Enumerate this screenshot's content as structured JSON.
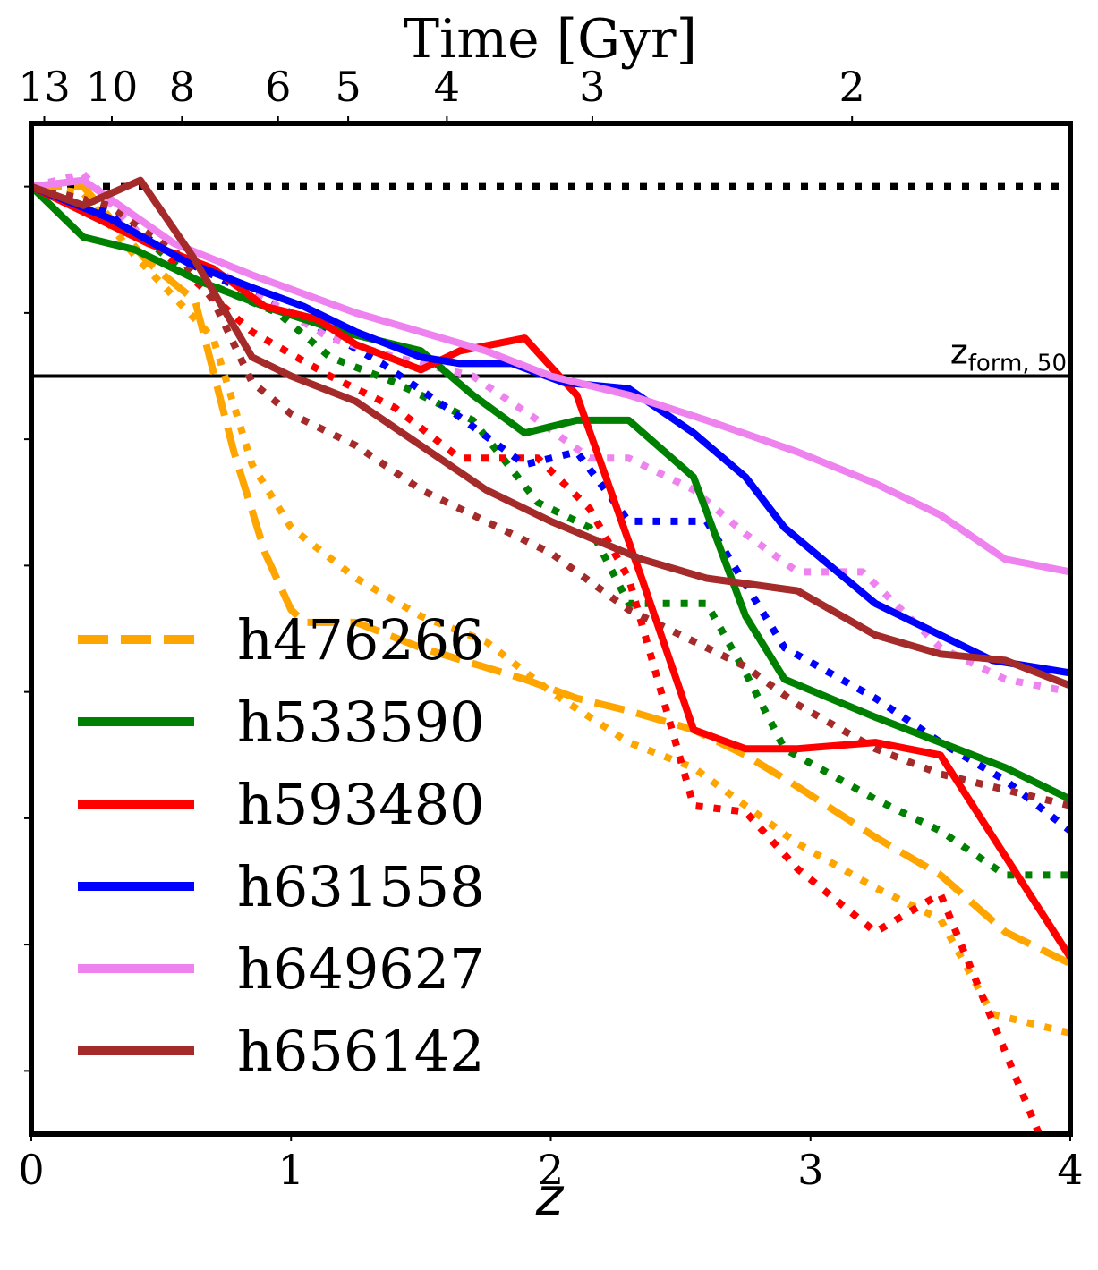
{
  "chart_data": {
    "type": "line",
    "top_axis": {
      "label": "Time [Gyr]",
      "ticks": [
        {
          "label": "13",
          "z": 0.05
        },
        {
          "label": "10",
          "z": 0.31
        },
        {
          "label": "8",
          "z": 0.58
        },
        {
          "label": "6",
          "z": 0.95
        },
        {
          "label": "5",
          "z": 1.22
        },
        {
          "label": "4",
          "z": 1.6
        },
        {
          "label": "3",
          "z": 2.16
        },
        {
          "label": "2",
          "z": 3.16
        }
      ]
    },
    "xlabel": "z",
    "xlim": [
      0,
      4
    ],
    "x_ticks": [
      "0",
      "1",
      "2",
      "3",
      "4"
    ],
    "ylim": [
      0,
      8
    ],
    "y_minor_ticks": [
      0.5,
      1.5,
      2.5,
      3.5,
      4.5,
      5.5,
      6.5,
      7.5
    ],
    "reference_lines": {
      "dotted_top_y": 7.5,
      "zform_y": 6.0,
      "zform_label_main": "z",
      "zform_label_sub": "form, 50"
    },
    "legend": {
      "placement": "lower-left"
    },
    "series": [
      {
        "name": "h476266",
        "color": "#ffa500",
        "solid_style": "dashed",
        "solid": [
          [
            0,
            7.5
          ],
          [
            0.2,
            7.5
          ],
          [
            0.45,
            6.9
          ],
          [
            0.63,
            6.6
          ],
          [
            0.78,
            5.4
          ],
          [
            0.9,
            4.6
          ],
          [
            1.0,
            4.15
          ],
          [
            1.05,
            4.05
          ],
          [
            1.25,
            4.05
          ],
          [
            1.5,
            3.85
          ],
          [
            1.9,
            3.6
          ],
          [
            2.1,
            3.45
          ],
          [
            2.3,
            3.35
          ],
          [
            2.55,
            3.2
          ],
          [
            2.75,
            3.0
          ],
          [
            2.95,
            2.75
          ],
          [
            3.25,
            2.35
          ],
          [
            3.5,
            2.05
          ],
          [
            3.75,
            1.6
          ],
          [
            4.0,
            1.35
          ]
        ],
        "dotted": [
          [
            0,
            7.5
          ],
          [
            0.2,
            7.45
          ],
          [
            0.4,
            6.95
          ],
          [
            0.7,
            6.3
          ],
          [
            0.85,
            5.3
          ],
          [
            1.0,
            4.8
          ],
          [
            1.25,
            4.4
          ],
          [
            1.5,
            4.1
          ],
          [
            1.75,
            3.9
          ],
          [
            2.0,
            3.5
          ],
          [
            2.3,
            3.1
          ],
          [
            2.55,
            2.9
          ],
          [
            2.75,
            2.6
          ],
          [
            2.95,
            2.3
          ],
          [
            3.25,
            1.95
          ],
          [
            3.5,
            1.7
          ],
          [
            3.7,
            0.95
          ],
          [
            4.0,
            0.8
          ]
        ]
      },
      {
        "name": "h533590",
        "color": "#008000",
        "solid_style": "solid",
        "solid": [
          [
            0,
            7.5
          ],
          [
            0.2,
            7.1
          ],
          [
            0.4,
            7.0
          ],
          [
            0.65,
            6.75
          ],
          [
            0.9,
            6.55
          ],
          [
            1.2,
            6.35
          ],
          [
            1.5,
            6.2
          ],
          [
            1.7,
            5.85
          ],
          [
            1.9,
            5.55
          ],
          [
            2.1,
            5.65
          ],
          [
            2.3,
            5.65
          ],
          [
            2.55,
            5.2
          ],
          [
            2.75,
            4.1
          ],
          [
            2.9,
            3.6
          ],
          [
            3.25,
            3.3
          ],
          [
            3.5,
            3.1
          ],
          [
            3.75,
            2.9
          ],
          [
            4.0,
            2.65
          ]
        ],
        "dotted": [
          [
            0,
            7.5
          ],
          [
            0.35,
            7.25
          ],
          [
            0.6,
            6.8
          ],
          [
            0.95,
            6.5
          ],
          [
            1.15,
            6.15
          ],
          [
            1.4,
            5.95
          ],
          [
            1.7,
            5.65
          ],
          [
            1.95,
            5.0
          ],
          [
            2.15,
            4.8
          ],
          [
            2.3,
            4.2
          ],
          [
            2.6,
            4.2
          ],
          [
            2.75,
            3.65
          ],
          [
            2.9,
            3.05
          ],
          [
            3.25,
            2.65
          ],
          [
            3.5,
            2.4
          ],
          [
            3.75,
            2.05
          ],
          [
            4.0,
            2.05
          ]
        ]
      },
      {
        "name": "h593480",
        "color": "#ff0000",
        "solid_style": "solid",
        "solid": [
          [
            0,
            7.5
          ],
          [
            0.25,
            7.25
          ],
          [
            0.45,
            7.05
          ],
          [
            0.7,
            6.85
          ],
          [
            0.9,
            6.55
          ],
          [
            1.1,
            6.45
          ],
          [
            1.25,
            6.25
          ],
          [
            1.5,
            6.05
          ],
          [
            1.65,
            6.2
          ],
          [
            1.9,
            6.3
          ],
          [
            2.1,
            5.85
          ],
          [
            2.35,
            4.4
          ],
          [
            2.55,
            3.2
          ],
          [
            2.75,
            3.05
          ],
          [
            2.95,
            3.05
          ],
          [
            3.25,
            3.1
          ],
          [
            3.5,
            3.0
          ],
          [
            3.75,
            2.2
          ],
          [
            4.0,
            1.4
          ]
        ],
        "dotted": [
          [
            0,
            7.5
          ],
          [
            0.35,
            7.3
          ],
          [
            0.55,
            6.9
          ],
          [
            0.85,
            6.35
          ],
          [
            1.15,
            6.0
          ],
          [
            1.4,
            5.75
          ],
          [
            1.65,
            5.35
          ],
          [
            1.95,
            5.35
          ],
          [
            2.15,
            4.95
          ],
          [
            2.3,
            4.4
          ],
          [
            2.55,
            2.6
          ],
          [
            2.75,
            2.55
          ],
          [
            2.95,
            2.1
          ],
          [
            3.25,
            1.6
          ],
          [
            3.5,
            1.9
          ],
          [
            3.7,
            0.9
          ],
          [
            4.0,
            -0.6
          ]
        ]
      },
      {
        "name": "h631558",
        "color": "#0000ff",
        "solid_style": "solid",
        "solid": [
          [
            0,
            7.5
          ],
          [
            0.3,
            7.25
          ],
          [
            0.6,
            6.9
          ],
          [
            0.85,
            6.7
          ],
          [
            1.05,
            6.55
          ],
          [
            1.25,
            6.35
          ],
          [
            1.5,
            6.15
          ],
          [
            1.65,
            6.1
          ],
          [
            1.85,
            6.1
          ],
          [
            2.05,
            5.95
          ],
          [
            2.3,
            5.9
          ],
          [
            2.55,
            5.55
          ],
          [
            2.75,
            5.2
          ],
          [
            2.9,
            4.8
          ],
          [
            3.25,
            4.2
          ],
          [
            3.5,
            3.95
          ],
          [
            3.7,
            3.75
          ],
          [
            4.0,
            3.65
          ]
        ],
        "dotted": [
          [
            0,
            7.5
          ],
          [
            0.3,
            7.3
          ],
          [
            0.55,
            6.95
          ],
          [
            0.75,
            6.75
          ],
          [
            1.05,
            6.45
          ],
          [
            1.35,
            6.1
          ],
          [
            1.6,
            5.75
          ],
          [
            1.9,
            5.3
          ],
          [
            2.1,
            5.4
          ],
          [
            2.3,
            4.85
          ],
          [
            2.6,
            4.85
          ],
          [
            2.75,
            4.35
          ],
          [
            2.9,
            3.85
          ],
          [
            3.25,
            3.45
          ],
          [
            3.5,
            3.1
          ],
          [
            3.75,
            2.8
          ],
          [
            4.0,
            2.4
          ]
        ]
      },
      {
        "name": "h649627",
        "color": "#ee82ee",
        "solid_style": "solid",
        "solid": [
          [
            0,
            7.5
          ],
          [
            0.2,
            7.55
          ],
          [
            0.55,
            7.05
          ],
          [
            0.85,
            6.8
          ],
          [
            1.05,
            6.65
          ],
          [
            1.25,
            6.5
          ],
          [
            1.5,
            6.35
          ],
          [
            1.75,
            6.2
          ],
          [
            2.0,
            6.0
          ],
          [
            2.3,
            5.85
          ],
          [
            2.6,
            5.65
          ],
          [
            2.95,
            5.4
          ],
          [
            3.25,
            5.15
          ],
          [
            3.5,
            4.9
          ],
          [
            3.75,
            4.55
          ],
          [
            4.0,
            4.45
          ]
        ],
        "dotted": [
          [
            0,
            7.5
          ],
          [
            0.2,
            7.6
          ],
          [
            0.45,
            7.05
          ],
          [
            0.7,
            6.85
          ],
          [
            0.95,
            6.55
          ],
          [
            1.15,
            6.3
          ],
          [
            1.4,
            6.15
          ],
          [
            1.7,
            6.0
          ],
          [
            1.95,
            5.65
          ],
          [
            2.15,
            5.35
          ],
          [
            2.3,
            5.35
          ],
          [
            2.55,
            5.1
          ],
          [
            2.75,
            4.75
          ],
          [
            2.95,
            4.45
          ],
          [
            3.2,
            4.45
          ],
          [
            3.5,
            3.85
          ],
          [
            3.75,
            3.6
          ],
          [
            4.0,
            3.5
          ]
        ]
      },
      {
        "name": "h656142",
        "color": "#a52a2a",
        "solid_style": "solid",
        "solid": [
          [
            0,
            7.5
          ],
          [
            0.2,
            7.35
          ],
          [
            0.42,
            7.55
          ],
          [
            0.62,
            6.95
          ],
          [
            0.85,
            6.15
          ],
          [
            1.0,
            6.0
          ],
          [
            1.25,
            5.8
          ],
          [
            1.5,
            5.45
          ],
          [
            1.75,
            5.1
          ],
          [
            2.0,
            4.85
          ],
          [
            2.35,
            4.55
          ],
          [
            2.6,
            4.4
          ],
          [
            2.95,
            4.3
          ],
          [
            3.25,
            3.95
          ],
          [
            3.5,
            3.8
          ],
          [
            3.75,
            3.75
          ],
          [
            4.0,
            3.55
          ]
        ],
        "dotted": [
          [
            0,
            7.5
          ],
          [
            0.3,
            7.35
          ],
          [
            0.55,
            7.0
          ],
          [
            0.7,
            6.6
          ],
          [
            0.85,
            5.95
          ],
          [
            1.0,
            5.7
          ],
          [
            1.25,
            5.45
          ],
          [
            1.5,
            5.1
          ],
          [
            1.75,
            4.85
          ],
          [
            2.0,
            4.6
          ],
          [
            2.3,
            4.15
          ],
          [
            2.55,
            3.9
          ],
          [
            2.75,
            3.7
          ],
          [
            2.95,
            3.4
          ],
          [
            3.25,
            3.05
          ],
          [
            3.5,
            2.85
          ],
          [
            4.0,
            2.6
          ]
        ]
      }
    ]
  }
}
